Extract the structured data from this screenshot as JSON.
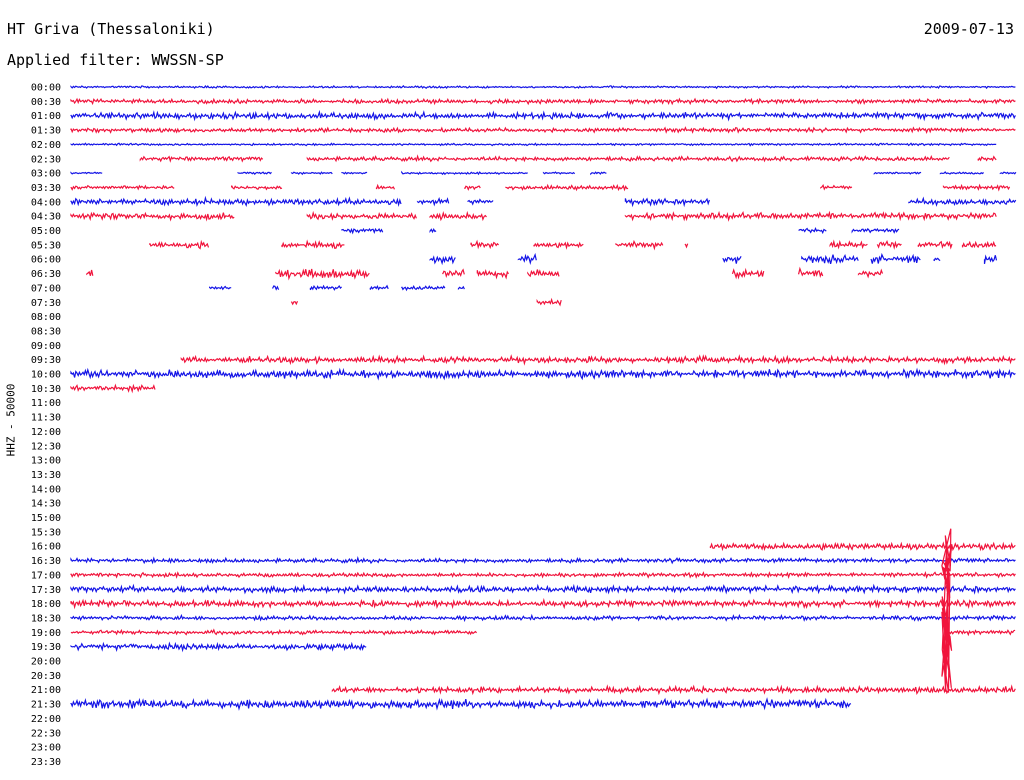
{
  "header": {
    "station": "HT Griva (Thessaloniki)",
    "date": "2009-07-13",
    "filter": "Applied filter: WWSSN-SP"
  },
  "channel_label": "HHZ - 50000",
  "colors": {
    "even_hour_trace": "#1414e6",
    "half_hour_trace": "#f0143c",
    "text": "#000000"
  },
  "chart_data": {
    "type": "line",
    "title": "HT Griva (Thessaloniki)",
    "subtitle": "Applied filter: WWSSN-SP",
    "ylabel": "HHZ - 50000",
    "xlabel": "",
    "grid": false,
    "x_range_minutes": [
      0,
      30
    ],
    "rows": [
      {
        "label": "00:00",
        "segments": [
          [
            0,
            30
          ]
        ],
        "amp": 1,
        "color": "blue"
      },
      {
        "label": "00:30",
        "segments": [
          [
            0,
            30
          ]
        ],
        "amp": 2,
        "color": "red"
      },
      {
        "label": "01:00",
        "segments": [
          [
            0,
            30
          ]
        ],
        "amp": 3,
        "color": "blue"
      },
      {
        "label": "01:30",
        "segments": [
          [
            0,
            30
          ]
        ],
        "amp": 2,
        "color": "red"
      },
      {
        "label": "02:00",
        "segments": [
          [
            0,
            29.4
          ]
        ],
        "amp": 1,
        "color": "blue"
      },
      {
        "label": "02:30",
        "segments": [
          [
            2.2,
            6.1
          ],
          [
            7.5,
            27.9
          ],
          [
            28.8,
            29.4
          ]
        ],
        "amp": 2,
        "color": "red"
      },
      {
        "label": "03:00",
        "segments": [
          [
            0,
            1
          ],
          [
            5.3,
            6.4
          ],
          [
            7,
            8.3
          ],
          [
            8.6,
            9.4
          ],
          [
            10.5,
            14.5
          ],
          [
            15,
            16
          ],
          [
            16.5,
            17
          ],
          [
            25.5,
            27
          ],
          [
            27.6,
            29
          ],
          [
            29.5,
            30
          ]
        ],
        "amp": 1,
        "color": "blue"
      },
      {
        "label": "03:30",
        "segments": [
          [
            0,
            3.3
          ],
          [
            5.1,
            6.7
          ],
          [
            9.7,
            10.3
          ],
          [
            12.5,
            13
          ],
          [
            13.8,
            17.7
          ],
          [
            23.8,
            24.8
          ],
          [
            27.7,
            29.8
          ]
        ],
        "amp": 2,
        "color": "red"
      },
      {
        "label": "04:00",
        "segments": [
          [
            0,
            10.5
          ],
          [
            11,
            12
          ],
          [
            12.6,
            13.4
          ],
          [
            17.6,
            20.3
          ],
          [
            26.6,
            30
          ]
        ],
        "amp": 3,
        "color": "blue"
      },
      {
        "label": "04:30",
        "segments": [
          [
            0,
            5.2
          ],
          [
            7.5,
            11
          ],
          [
            11.4,
            13.2
          ],
          [
            17.6,
            29.4
          ]
        ],
        "amp": 3,
        "color": "red"
      },
      {
        "label": "05:00",
        "segments": [
          [
            8.6,
            9.9
          ],
          [
            11.4,
            11.6
          ],
          [
            23.1,
            24
          ],
          [
            24.8,
            26.3
          ]
        ],
        "amp": 2,
        "color": "blue"
      },
      {
        "label": "05:30",
        "segments": [
          [
            2.5,
            4.4
          ],
          [
            6.7,
            8.7
          ],
          [
            12.7,
            13.6
          ],
          [
            14.7,
            16.3
          ],
          [
            17.3,
            18.8
          ],
          [
            19.5,
            19.6
          ],
          [
            24.1,
            25.3
          ],
          [
            25.6,
            26.4
          ],
          [
            26.9,
            28
          ],
          [
            28.3,
            29.4
          ]
        ],
        "amp": 3,
        "color": "red"
      },
      {
        "label": "06:00",
        "segments": [
          [
            11.4,
            12.2
          ],
          [
            14.2,
            14.8
          ],
          [
            20.7,
            21.3
          ],
          [
            23.2,
            25
          ],
          [
            25.4,
            27
          ],
          [
            27.4,
            27.6
          ],
          [
            29,
            29.4
          ]
        ],
        "amp": 4,
        "color": "blue"
      },
      {
        "label": "06:30",
        "segments": [
          [
            0.5,
            0.7
          ],
          [
            6.5,
            9.5
          ],
          [
            11.8,
            12.5
          ],
          [
            12.9,
            13.9
          ],
          [
            14.5,
            15.5
          ],
          [
            21,
            22
          ],
          [
            23.1,
            23.9
          ],
          [
            25,
            25.8
          ]
        ],
        "amp": 4,
        "color": "red"
      },
      {
        "label": "07:00",
        "segments": [
          [
            4.4,
            5.1
          ],
          [
            6.4,
            6.6
          ],
          [
            7.6,
            8.6
          ],
          [
            9.5,
            10.1
          ],
          [
            10.5,
            11.9
          ],
          [
            12.3,
            12.5
          ]
        ],
        "amp": 2,
        "color": "blue"
      },
      {
        "label": "07:30",
        "segments": [
          [
            7,
            7.2
          ],
          [
            14.8,
            15.6
          ]
        ],
        "amp": 3,
        "color": "red"
      },
      {
        "label": "08:00",
        "segments": [],
        "amp": 0,
        "color": "blue"
      },
      {
        "label": "08:30",
        "segments": [],
        "amp": 0,
        "color": "red"
      },
      {
        "label": "09:00",
        "segments": [],
        "amp": 0,
        "color": "blue"
      },
      {
        "label": "09:30",
        "segments": [
          [
            3.5,
            30
          ]
        ],
        "amp": 3,
        "color": "red"
      },
      {
        "label": "10:00",
        "segments": [
          [
            0,
            30
          ]
        ],
        "amp": 4,
        "color": "blue"
      },
      {
        "label": "10:30",
        "segments": [
          [
            0,
            2.7
          ]
        ],
        "amp": 3,
        "color": "red"
      },
      {
        "label": "11:00",
        "segments": [],
        "amp": 0,
        "color": "blue"
      },
      {
        "label": "11:30",
        "segments": [],
        "amp": 0,
        "color": "red"
      },
      {
        "label": "12:00",
        "segments": [],
        "amp": 0,
        "color": "blue"
      },
      {
        "label": "12:30",
        "segments": [],
        "amp": 0,
        "color": "red"
      },
      {
        "label": "13:00",
        "segments": [],
        "amp": 0,
        "color": "blue"
      },
      {
        "label": "13:30",
        "segments": [],
        "amp": 0,
        "color": "red"
      },
      {
        "label": "14:00",
        "segments": [],
        "amp": 0,
        "color": "blue"
      },
      {
        "label": "14:30",
        "segments": [],
        "amp": 0,
        "color": "red"
      },
      {
        "label": "15:00",
        "segments": [],
        "amp": 0,
        "color": "blue"
      },
      {
        "label": "15:30",
        "segments": [],
        "amp": 0,
        "color": "red"
      },
      {
        "label": "16:00",
        "segments": [
          [
            20.3,
            30
          ]
        ],
        "amp": 3,
        "color": "red"
      },
      {
        "label": "16:30",
        "segments": [
          [
            0,
            30
          ]
        ],
        "amp": 2,
        "color": "blue"
      },
      {
        "label": "17:00",
        "segments": [
          [
            0,
            30
          ]
        ],
        "amp": 2,
        "color": "red"
      },
      {
        "label": "17:30",
        "segments": [
          [
            0,
            30
          ]
        ],
        "amp": 3,
        "color": "blue"
      },
      {
        "label": "18:00",
        "segments": [
          [
            0,
            30
          ]
        ],
        "amp": 3,
        "color": "red"
      },
      {
        "label": "18:30",
        "segments": [
          [
            0,
            30
          ]
        ],
        "amp": 2,
        "color": "blue"
      },
      {
        "label": "19:00",
        "segments": [
          [
            0,
            12.9
          ],
          [
            27.8,
            30
          ]
        ],
        "amp": 2,
        "color": "red"
      },
      {
        "label": "19:30",
        "segments": [
          [
            0,
            9.4
          ]
        ],
        "amp": 3,
        "color": "blue"
      },
      {
        "label": "20:00",
        "segments": [],
        "amp": 0,
        "color": "red"
      },
      {
        "label": "20:30",
        "segments": [],
        "amp": 0,
        "color": "blue"
      },
      {
        "label": "21:00",
        "segments": [
          [
            8.3,
            30
          ]
        ],
        "amp": 3,
        "color": "red"
      },
      {
        "label": "21:30",
        "segments": [
          [
            0,
            24.8
          ]
        ],
        "amp": 4,
        "color": "blue"
      },
      {
        "label": "22:00",
        "segments": [],
        "amp": 0,
        "color": "red"
      },
      {
        "label": "22:30",
        "segments": [],
        "amp": 0,
        "color": "blue"
      },
      {
        "label": "23:00",
        "segments": [],
        "amp": 0,
        "color": "red"
      },
      {
        "label": "23:30",
        "segments": [],
        "amp": 0,
        "color": "blue"
      }
    ],
    "row_labels": [
      "00:00",
      "00:30",
      "01:00",
      "01:30",
      "02:00",
      "02:30",
      "03:00",
      "03:30",
      "04:00",
      "04:30",
      "05:00",
      "05:30",
      "06:00",
      "06:30",
      "07:00",
      "07:30",
      "08:00",
      "08:30",
      "09:00",
      "09:30",
      "10:00",
      "10:30",
      "11:00",
      "11:30",
      "12:00",
      "12:30",
      "13:00",
      "13:30",
      "14:00",
      "14:30",
      "15:00",
      "15:30",
      "16:00",
      "16:30",
      "17:00",
      "17:30",
      "18:00",
      "18:30",
      "19:00",
      "19:30",
      "20:00",
      "20:30",
      "21:00",
      "21:30",
      "22:00",
      "22:30",
      "23:00",
      "23:30"
    ],
    "spikes": [
      {
        "row": "16:30",
        "minute": 27.8,
        "up": 3,
        "down": 8,
        "color": "red"
      },
      {
        "row": "19:00",
        "minute": 27.8,
        "up": 12,
        "down": 14,
        "color": "red"
      }
    ]
  }
}
